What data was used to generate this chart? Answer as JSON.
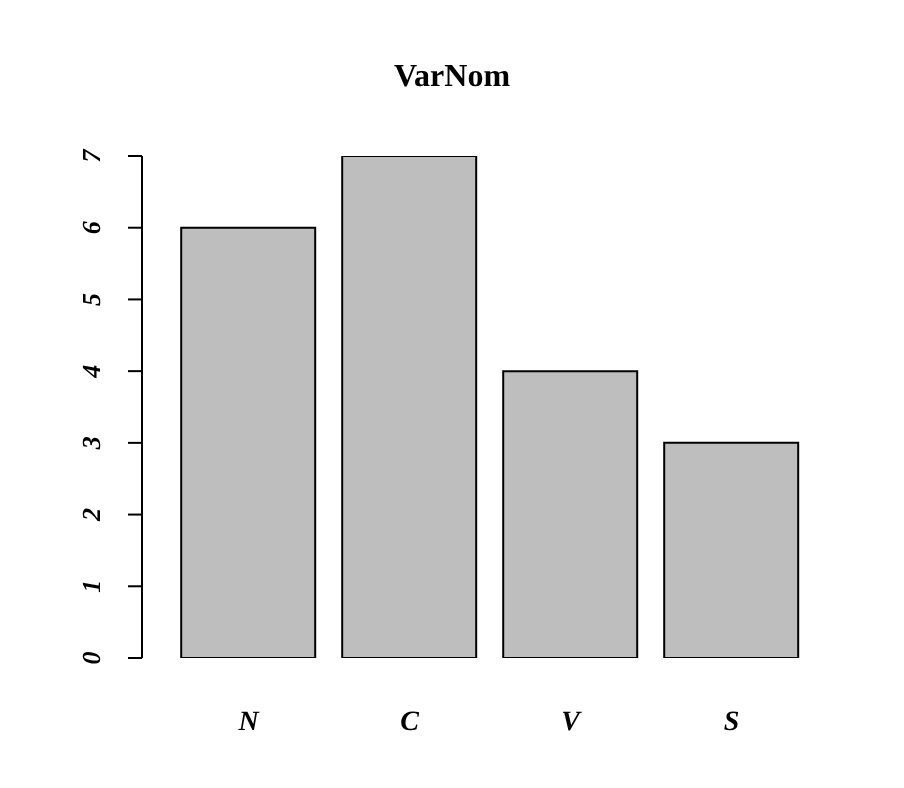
{
  "chart_data": {
    "type": "bar",
    "title": "VarNom",
    "categories": [
      "N",
      "C",
      "V",
      "S"
    ],
    "values": [
      6,
      7,
      4,
      3
    ],
    "color": "#bebebe",
    "ylim": [
      0,
      7
    ],
    "yticks": [
      0,
      1,
      2,
      3,
      4,
      5,
      6,
      7
    ],
    "grid": false,
    "legend": false
  }
}
